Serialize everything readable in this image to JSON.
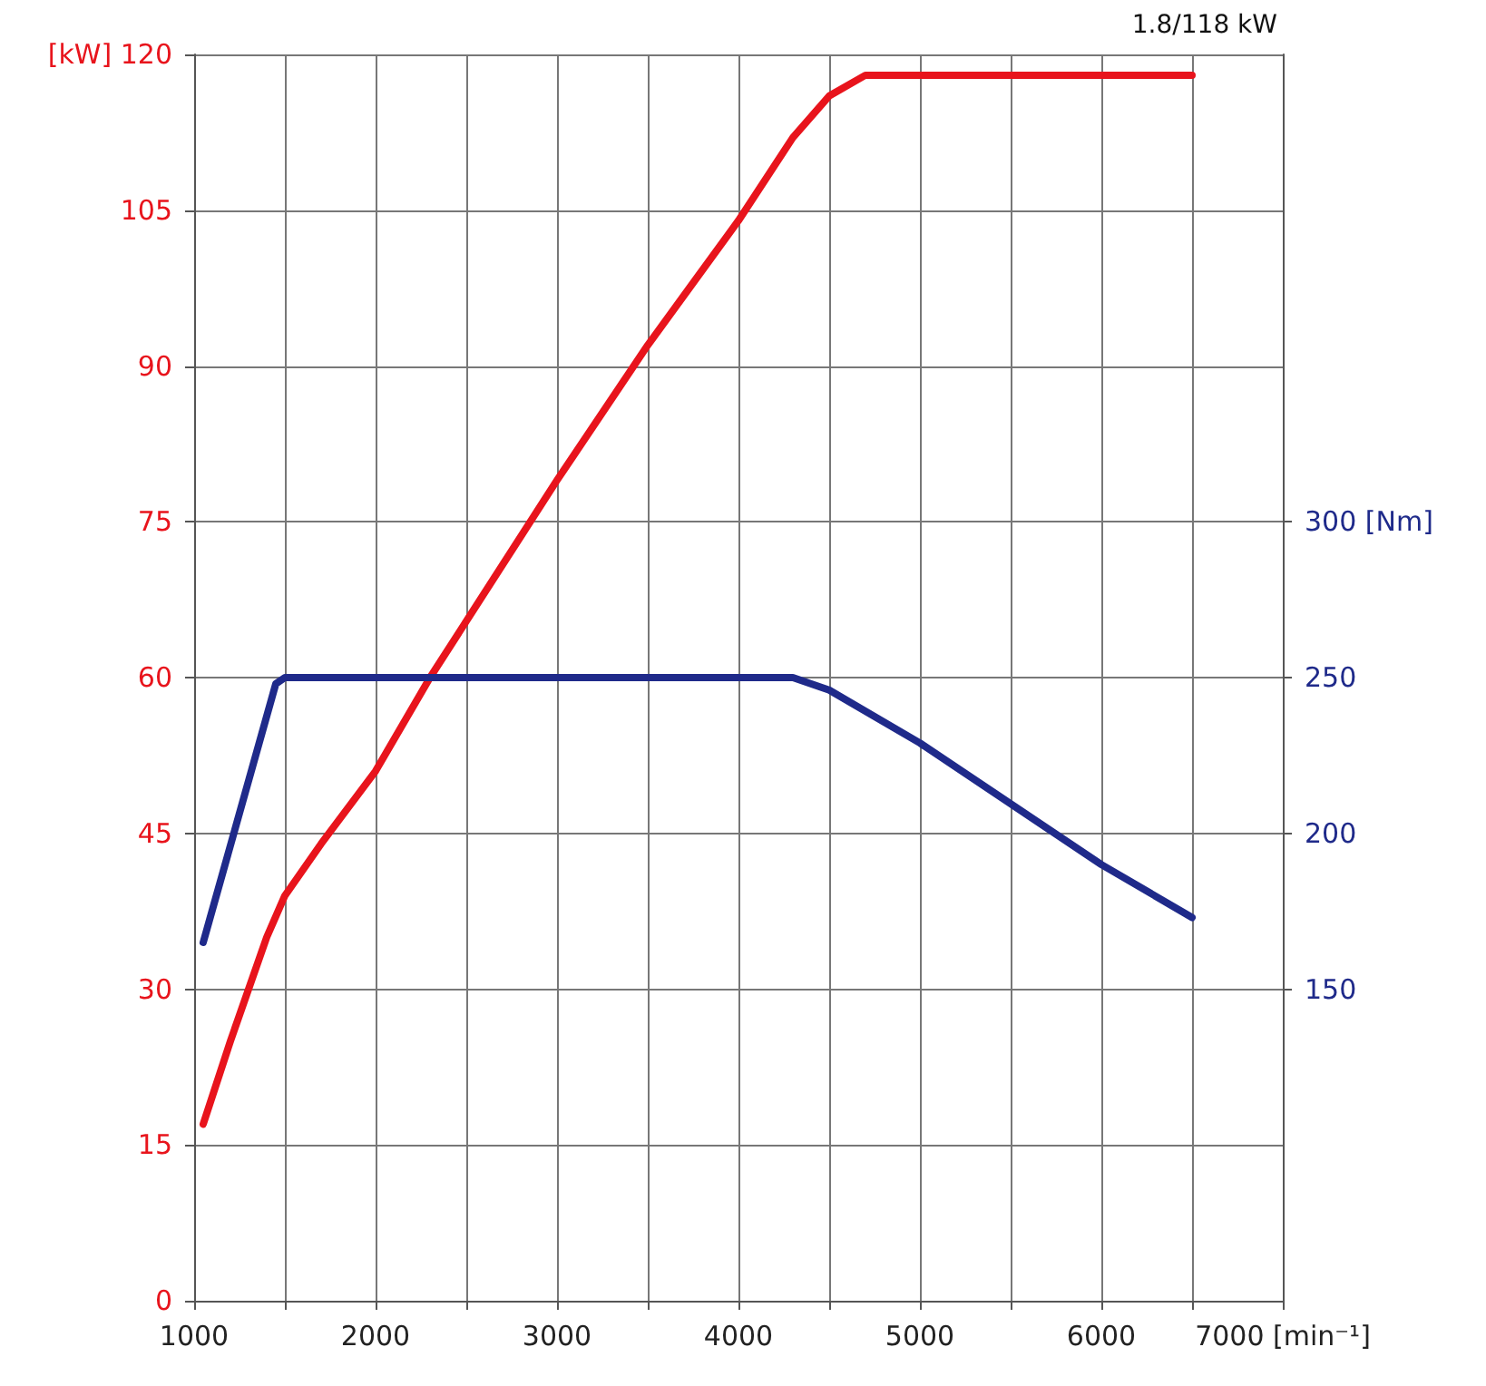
{
  "chart_data": {
    "type": "line",
    "title": "1.8/118 kW",
    "xlim": [
      1000,
      7000
    ],
    "xticks": [
      1000,
      {
        "value": 1500,
        "label": null
      },
      2000,
      {
        "value": 2500,
        "label": null
      },
      3000,
      {
        "value": 3500,
        "label": null
      },
      4000,
      {
        "value": 4500,
        "label": null
      },
      5000,
      {
        "value": 5500,
        "label": null
      },
      6000,
      {
        "value": 6500,
        "label": null
      },
      {
        "value": 7000,
        "label": "7000 [min⁻¹]"
      }
    ],
    "ylim": [
      0,
      120
    ],
    "yticks": [
      0,
      15,
      30,
      45,
      60,
      75,
      90,
      105,
      {
        "value": 120,
        "label": "[kW] 120"
      }
    ],
    "y2lim": [
      50,
      450
    ],
    "y2ticks": [
      150,
      200,
      250,
      {
        "value": 300,
        "label": "300 [Nm]"
      }
    ],
    "grid": true,
    "marker": "none",
    "line_style": "solid",
    "series": [
      {
        "color": "#e8141c",
        "x": [
          1050,
          1200,
          1400,
          1500,
          1700,
          2000,
          2300,
          3000,
          3500,
          4000,
          4300,
          4500,
          4700,
          4800,
          6500
        ],
        "values": [
          17,
          25,
          35,
          39,
          44,
          51,
          60,
          79,
          92,
          104,
          112,
          116,
          118,
          118,
          118
        ]
      },
      {
        "color": "#1f2a8a",
        "axis": "y2",
        "x": [
          1050,
          1450,
          1500,
          4300,
          4500,
          5000,
          6000,
          6500
        ],
        "values": [
          165,
          248,
          250,
          250,
          246,
          229,
          190,
          173
        ]
      }
    ]
  }
}
